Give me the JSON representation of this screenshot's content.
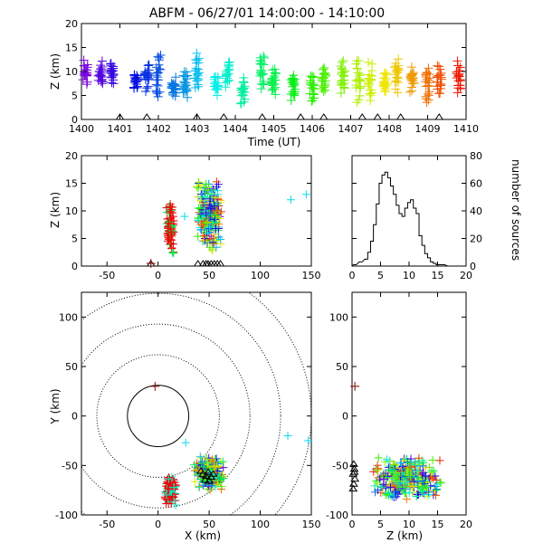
{
  "title": "ABFM - 06/27/01 14:00:00 - 14:10:00",
  "chart_data": [
    {
      "panel": "time-height",
      "type": "scatter",
      "xlabel": "Time (UT)",
      "ylabel": "Z (km)",
      "xlim": [
        1400,
        1410
      ],
      "ylim": [
        0,
        20
      ],
      "xticks": [
        "1400",
        "1401",
        "1402",
        "1403",
        "1404",
        "1405",
        "1406",
        "1407",
        "1408",
        "1409",
        "1410"
      ],
      "yticks": [
        "0",
        "5",
        "10",
        "15",
        "20"
      ],
      "color_by": "time (violet at 14:00 to red at 14:10)",
      "marker": "plus",
      "source_clusters": [
        {
          "t": 1400.1,
          "z": [
            6,
            14
          ]
        },
        {
          "t": 1400.5,
          "z": [
            5,
            13
          ]
        },
        {
          "t": 1400.8,
          "z": [
            7,
            13
          ]
        },
        {
          "t": 1401.4,
          "z": [
            6,
            10
          ]
        },
        {
          "t": 1401.7,
          "z": [
            5,
            13
          ]
        },
        {
          "t": 1402.0,
          "z": [
            4,
            16
          ]
        },
        {
          "t": 1402.4,
          "z": [
            4,
            9
          ]
        },
        {
          "t": 1402.7,
          "z": [
            4,
            11
          ]
        },
        {
          "t": 1403.0,
          "z": [
            5,
            14
          ]
        },
        {
          "t": 1403.5,
          "z": [
            4,
            10
          ]
        },
        {
          "t": 1403.8,
          "z": [
            6,
            13
          ]
        },
        {
          "t": 1404.2,
          "z": [
            3,
            10
          ]
        },
        {
          "t": 1404.7,
          "z": [
            6,
            14
          ]
        },
        {
          "t": 1405.0,
          "z": [
            5,
            11
          ]
        },
        {
          "t": 1405.5,
          "z": [
            3,
            11
          ]
        },
        {
          "t": 1406.0,
          "z": [
            3,
            11
          ]
        },
        {
          "t": 1406.3,
          "z": [
            4,
            12
          ]
        },
        {
          "t": 1406.8,
          "z": [
            5,
            13
          ]
        },
        {
          "t": 1407.2,
          "z": [
            3,
            14
          ]
        },
        {
          "t": 1407.5,
          "z": [
            3,
            13
          ]
        },
        {
          "t": 1407.9,
          "z": [
            4,
            11
          ]
        },
        {
          "t": 1408.2,
          "z": [
            5,
            13
          ]
        },
        {
          "t": 1408.6,
          "z": [
            5,
            12
          ]
        },
        {
          "t": 1409.0,
          "z": [
            3,
            13
          ]
        },
        {
          "t": 1409.3,
          "z": [
            4,
            12
          ]
        },
        {
          "t": 1409.8,
          "z": [
            5,
            13
          ]
        }
      ],
      "stations_x": [
        1401.0,
        1401.7,
        1403.0,
        1403.7,
        1404.7,
        1405.7,
        1406.3,
        1407.3,
        1407.7,
        1408.3,
        1409.3
      ]
    },
    {
      "panel": "x-height",
      "type": "scatter",
      "xlabel": "",
      "ylabel": "Z (km)",
      "xlim": [
        -75,
        150
      ],
      "ylim": [
        0,
        20
      ],
      "xticks": [
        "-50",
        "0",
        "50",
        "100",
        "150"
      ],
      "yticks": [
        "0",
        "5",
        "10",
        "15",
        "20"
      ],
      "source_clusters": [
        {
          "x": [
            8,
            16
          ],
          "z": [
            2,
            12
          ]
        },
        {
          "x": [
            36,
            64
          ],
          "z": [
            2,
            16
          ]
        }
      ],
      "outliers": [
        {
          "x": 130,
          "z": 12
        },
        {
          "x": 145,
          "z": 13
        },
        {
          "x": 26,
          "z": 9
        }
      ],
      "stations_x": [
        -7,
        39,
        44,
        47,
        49,
        52,
        55,
        58,
        61
      ]
    },
    {
      "panel": "height-histogram",
      "type": "line",
      "xlabel": "",
      "ylabel": "number of sources",
      "xlim": [
        0,
        20
      ],
      "ylim": [
        0,
        80
      ],
      "xticks": [
        "0",
        "5",
        "10",
        "15",
        "20"
      ],
      "yticks": [
        "0",
        "20",
        "40",
        "60",
        "80"
      ],
      "x": [
        0.5,
        1.5,
        2.5,
        3.0,
        3.5,
        4.0,
        4.5,
        5.0,
        5.5,
        6.0,
        6.5,
        7.0,
        7.5,
        8.0,
        8.5,
        9.0,
        9.5,
        10.0,
        10.5,
        11.0,
        11.5,
        12.0,
        12.5,
        13.0,
        13.5,
        14.0,
        14.5,
        15.0,
        16.0,
        17.0
      ],
      "y": [
        1,
        3,
        5,
        10,
        18,
        30,
        45,
        60,
        66,
        68,
        64,
        58,
        52,
        44,
        38,
        36,
        42,
        46,
        48,
        42,
        38,
        22,
        15,
        9,
        6,
        3,
        2,
        1,
        1,
        0
      ]
    },
    {
      "panel": "plan-view",
      "type": "scatter",
      "xlabel": "X (km)",
      "ylabel": "Y (km)",
      "xlim": [
        -75,
        150
      ],
      "ylim": [
        -100,
        125
      ],
      "xticks": [
        "-50",
        "0",
        "50",
        "100",
        "150"
      ],
      "yticks": [
        "-100",
        "-50",
        "0",
        "50",
        "100"
      ],
      "range_rings_km": [
        30,
        60,
        90,
        120,
        150
      ],
      "origin_marker": {
        "x": -3,
        "y": 30
      },
      "source_clusters": [
        {
          "x": [
            6,
            18
          ],
          "y": [
            -92,
            -58
          ]
        },
        {
          "x": [
            35,
            66
          ],
          "y": [
            -75,
            -40
          ]
        }
      ],
      "outliers": [
        {
          "x": 127,
          "y": -20
        },
        {
          "x": 147,
          "y": -25
        },
        {
          "x": 27,
          "y": -27
        }
      ]
    },
    {
      "panel": "height-y",
      "type": "scatter",
      "xlabel": "Z (km)",
      "ylabel": "",
      "xlim": [
        0,
        20
      ],
      "ylim": [
        -100,
        125
      ],
      "xticks": [
        "0",
        "5",
        "10",
        "15",
        "20"
      ],
      "yticks": [
        "-100",
        "-50",
        "0",
        "50",
        "100"
      ],
      "origin_marker": {
        "z": 0.5,
        "y": 30
      },
      "source_clusters": [
        {
          "z": [
            3,
            16
          ],
          "y": [
            -85,
            -40
          ]
        }
      ]
    }
  ]
}
